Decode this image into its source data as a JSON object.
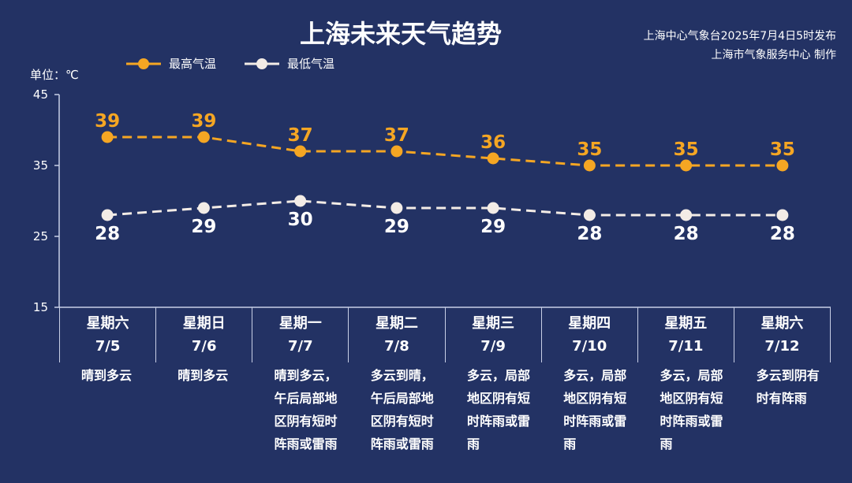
{
  "header": {
    "title": "上海未来天气趋势",
    "source_line1": "上海中心气象台2025年7月4日5时发布",
    "source_line2": "上海市气象服务中心 制作"
  },
  "unit_label": "单位：℃",
  "colors": {
    "background": "#233264",
    "high": "#f5a623",
    "low": "#f3ece6",
    "text": "#ffffff"
  },
  "legend": {
    "high": "最高气温",
    "low": "最低气温"
  },
  "chart_data": {
    "type": "line",
    "title": "上海未来天气趋势",
    "ylabel": "单位：℃",
    "ylim": [
      15,
      45
    ],
    "yticks": [
      15,
      25,
      35,
      45
    ],
    "grid": false,
    "categories": [
      "7/5",
      "7/6",
      "7/7",
      "7/8",
      "7/9",
      "7/10",
      "7/11",
      "7/12"
    ],
    "series": [
      {
        "name": "最高气温",
        "values": [
          39,
          39,
          37,
          37,
          36,
          35,
          35,
          35
        ],
        "color": "#f5a623",
        "style": "dashed"
      },
      {
        "name": "最低气温",
        "values": [
          28,
          29,
          30,
          29,
          29,
          28,
          28,
          28
        ],
        "color": "#f3ece6",
        "style": "dashed"
      }
    ]
  },
  "days": [
    {
      "weekday": "星期六",
      "date": "7/5",
      "weather": "晴到多云"
    },
    {
      "weekday": "星期日",
      "date": "7/6",
      "weather": "晴到多云"
    },
    {
      "weekday": "星期一",
      "date": "7/7",
      "weather": "晴到多云，午后局部地区阴有短时阵雨或雷雨"
    },
    {
      "weekday": "星期二",
      "date": "7/8",
      "weather": "多云到晴，午后局部地区阴有短时阵雨或雷雨"
    },
    {
      "weekday": "星期三",
      "date": "7/9",
      "weather": "多云，局部地区阴有短时阵雨或雷雨"
    },
    {
      "weekday": "星期四",
      "date": "7/10",
      "weather": "多云，局部地区阴有短时阵雨或雷雨"
    },
    {
      "weekday": "星期五",
      "date": "7/11",
      "weather": "多云，局部地区阴有短时阵雨或雷雨"
    },
    {
      "weekday": "星期六",
      "date": "7/12",
      "weather": "多云到阴有时有阵雨"
    }
  ]
}
